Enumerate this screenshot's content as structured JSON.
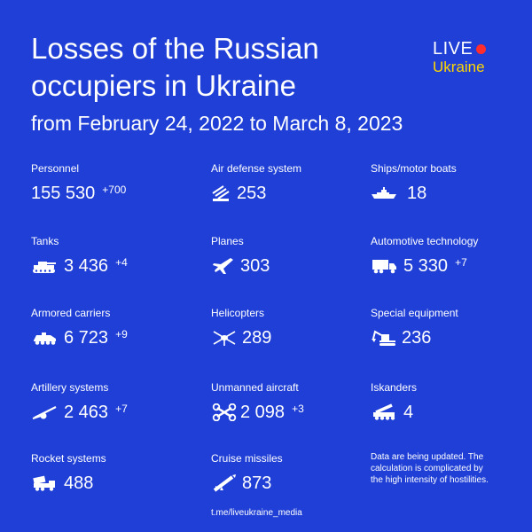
{
  "header": {
    "title": "Losses of the Russian occupiers in Ukraine",
    "subtitle": "from February 24, 2022 to March 8, 2023"
  },
  "logo": {
    "live": "LIVE",
    "ukraine": "Ukraine"
  },
  "stats": {
    "personnel": {
      "label": "Personnel",
      "value": "155 530",
      "delta": "+700"
    },
    "air_defense": {
      "label": "Air defense system",
      "value": "253",
      "delta": "",
      "icon": "air-defense-icon"
    },
    "ships": {
      "label": "Ships/motor boats",
      "value": "18",
      "delta": "",
      "icon": "ship-icon"
    },
    "tanks": {
      "label": "Tanks",
      "value": "3 436",
      "delta": "+4",
      "icon": "tank-icon"
    },
    "planes": {
      "label": "Planes",
      "value": "303",
      "delta": "",
      "icon": "plane-icon"
    },
    "automotive": {
      "label": "Automotive technology",
      "value": "5 330",
      "delta": "+7",
      "icon": "truck-icon"
    },
    "armored": {
      "label": "Armored carriers",
      "value": "6 723",
      "delta": "+9",
      "icon": "armored-carrier-icon"
    },
    "helicopters": {
      "label": "Helicopters",
      "value": "289",
      "delta": "",
      "icon": "helicopter-icon"
    },
    "special": {
      "label": "Special equipment",
      "value": "236",
      "delta": "",
      "icon": "excavator-icon"
    },
    "artillery": {
      "label": "Artillery systems",
      "value": "2 463",
      "delta": "+7",
      "icon": "artillery-icon"
    },
    "drones": {
      "label": "Unmanned aircraft",
      "value": "2 098",
      "delta": "+3",
      "icon": "drone-icon"
    },
    "iskanders": {
      "label": "Iskanders",
      "value": "4",
      "delta": "",
      "icon": "missile-launcher-icon"
    },
    "rockets": {
      "label": "Rocket systems",
      "value": "488",
      "delta": "",
      "icon": "rocket-system-icon"
    },
    "cruise": {
      "label": "Cruise missiles",
      "value": "873",
      "delta": "",
      "icon": "cruise-missile-icon"
    }
  },
  "note": "Data are being updated. The calculation is complicated by the high intensity of hostilities.",
  "footer_link": "t.me/liveukraine_media",
  "colors": {
    "background": "#1f3fd6",
    "text": "#ffffff",
    "accent_yellow": "#ffd600",
    "accent_red": "#ff2d2d"
  }
}
